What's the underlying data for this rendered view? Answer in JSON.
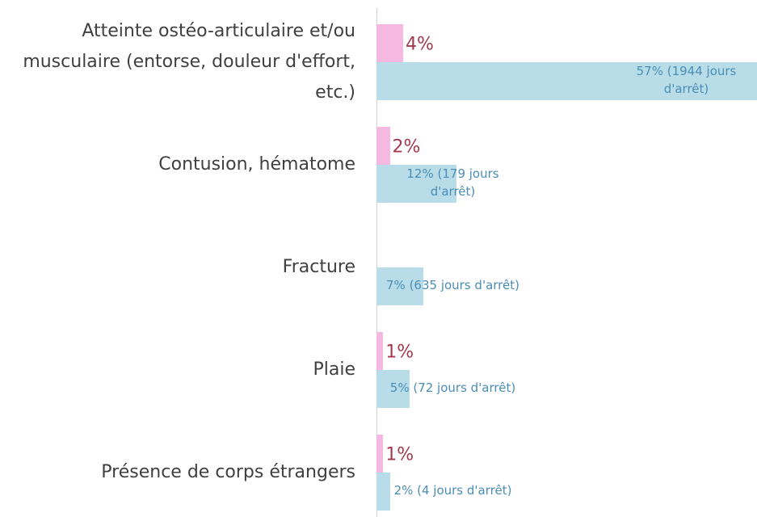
{
  "chart_data": {
    "type": "bar",
    "orientation": "horizontal",
    "categories": [
      "Atteinte ostéo-articulaire et/ou musculaire (entorse, douleur d'effort, etc.)",
      "Contusion, hématome",
      "Fracture",
      "Plaie",
      "Présence de corps étrangers"
    ],
    "series": [
      {
        "color": "#f5b8e0",
        "values": [
          4,
          2,
          null,
          1,
          1
        ],
        "value_labels": [
          "4%",
          "2%",
          null,
          "1%",
          "1%"
        ]
      },
      {
        "color": "#b8dde9",
        "values": [
          57,
          12,
          7,
          5,
          2
        ],
        "value_labels": [
          "57% (1944 jours d'arrêt)",
          "12% (179 jours d'arrêt)",
          "7% (635 jours d'arrêt)",
          "5% (72 jours d'arrêt)",
          "2% (4 jours d'arrêt)"
        ]
      }
    ],
    "xlim": [
      0,
      57
    ]
  }
}
